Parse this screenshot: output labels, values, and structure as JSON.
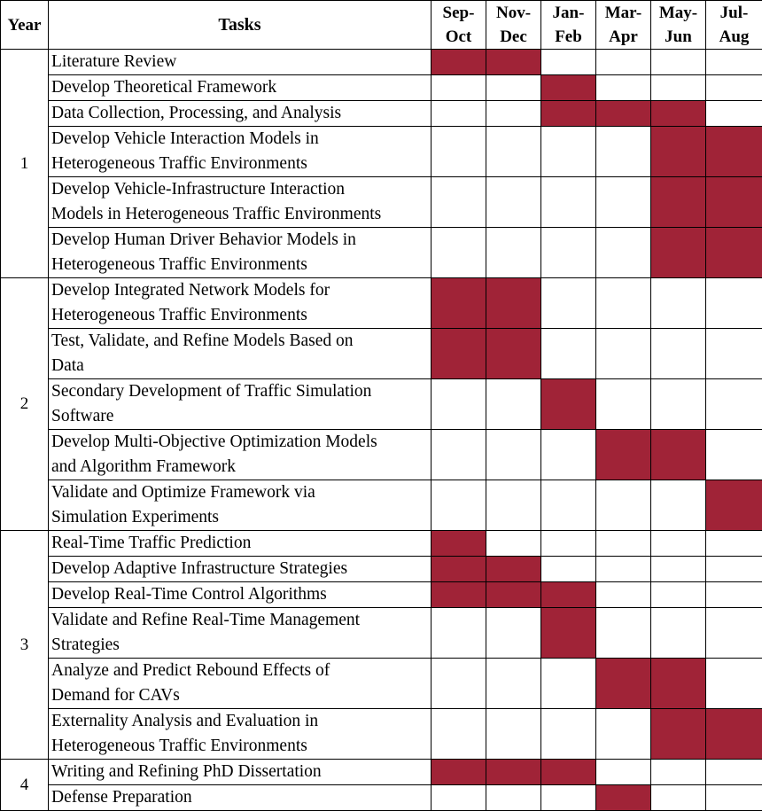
{
  "header": {
    "year": "Year",
    "tasks": "Tasks",
    "periods": [
      {
        "l1": "Sep-",
        "l2": "Oct"
      },
      {
        "l1": "Nov-",
        "l2": "Dec"
      },
      {
        "l1": "Jan-",
        "l2": "Feb"
      },
      {
        "l1": "Mar-",
        "l2": "Apr"
      },
      {
        "l1": "May-",
        "l2": "Jun"
      },
      {
        "l1": "Jul-",
        "l2": "Aug"
      }
    ]
  },
  "highlight_color": "#a02337",
  "years": [
    {
      "year": "1",
      "tasks": [
        {
          "lines": [
            "Literature Review"
          ],
          "active": [
            1,
            1,
            0,
            0,
            0,
            0
          ]
        },
        {
          "lines": [
            "Develop Theoretical Framework"
          ],
          "active": [
            0,
            0,
            1,
            0,
            0,
            0
          ]
        },
        {
          "lines": [
            "Data Collection, Processing, and Analysis"
          ],
          "active": [
            0,
            0,
            1,
            1,
            1,
            0
          ]
        },
        {
          "lines": [
            "Develop Vehicle Interaction Models in",
            "Heterogeneous Traffic Environments"
          ],
          "active": [
            0,
            0,
            0,
            0,
            1,
            1
          ]
        },
        {
          "lines": [
            "Develop Vehicle-Infrastructure Interaction",
            "Models in Heterogeneous Traffic Environments"
          ],
          "active": [
            0,
            0,
            0,
            0,
            1,
            1
          ]
        },
        {
          "lines": [
            "Develop Human Driver Behavior Models in",
            "Heterogeneous Traffic Environments"
          ],
          "active": [
            0,
            0,
            0,
            0,
            1,
            1
          ]
        }
      ]
    },
    {
      "year": "2",
      "tasks": [
        {
          "lines": [
            "Develop Integrated Network Models for",
            "Heterogeneous Traffic Environments"
          ],
          "active": [
            1,
            1,
            0,
            0,
            0,
            0
          ]
        },
        {
          "lines": [
            "Test, Validate, and Refine Models Based on",
            "Data"
          ],
          "active": [
            1,
            1,
            0,
            0,
            0,
            0
          ]
        },
        {
          "lines": [
            "Secondary Development of Traffic Simulation",
            "Software"
          ],
          "active": [
            0,
            0,
            1,
            0,
            0,
            0
          ]
        },
        {
          "lines": [
            "Develop Multi-Objective Optimization Models",
            "and Algorithm Framework"
          ],
          "active": [
            0,
            0,
            0,
            1,
            1,
            0
          ]
        },
        {
          "lines": [
            "Validate and Optimize Framework via",
            "Simulation Experiments"
          ],
          "active": [
            0,
            0,
            0,
            0,
            0,
            1
          ]
        }
      ]
    },
    {
      "year": "3",
      "tasks": [
        {
          "lines": [
            "Real-Time Traffic Prediction"
          ],
          "active": [
            1,
            0,
            0,
            0,
            0,
            0
          ]
        },
        {
          "lines": [
            "Develop Adaptive Infrastructure Strategies"
          ],
          "active": [
            1,
            1,
            0,
            0,
            0,
            0
          ]
        },
        {
          "lines": [
            "Develop Real-Time Control Algorithms"
          ],
          "active": [
            1,
            1,
            1,
            0,
            0,
            0
          ]
        },
        {
          "lines": [
            "Validate and Refine Real-Time Management",
            "Strategies"
          ],
          "active": [
            0,
            0,
            1,
            0,
            0,
            0
          ]
        },
        {
          "lines": [
            "Analyze and Predict Rebound Effects of",
            "Demand for CAVs"
          ],
          "active": [
            0,
            0,
            0,
            1,
            1,
            0
          ]
        },
        {
          "lines": [
            "Externality Analysis and Evaluation in",
            "Heterogeneous Traffic Environments"
          ],
          "active": [
            0,
            0,
            0,
            0,
            1,
            1
          ]
        }
      ]
    },
    {
      "year": "4",
      "tasks": [
        {
          "lines": [
            "Writing and Refining PhD Dissertation"
          ],
          "active": [
            1,
            1,
            1,
            0,
            0,
            0
          ]
        },
        {
          "lines": [
            "Defense Preparation"
          ],
          "active": [
            0,
            0,
            0,
            1,
            0,
            0
          ]
        }
      ]
    }
  ]
}
